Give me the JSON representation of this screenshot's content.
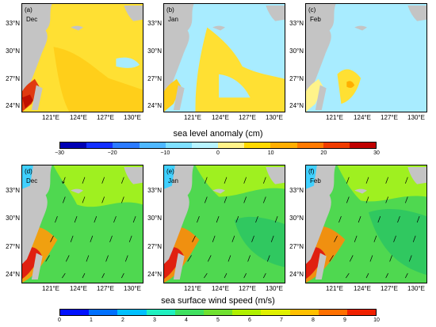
{
  "top_row": {
    "panels": [
      {
        "tag": "(a)",
        "month": "Dec"
      },
      {
        "tag": "(b)",
        "month": "Jan"
      },
      {
        "tag": "(c)",
        "month": "Feb"
      }
    ],
    "colorbar": {
      "title": "sea level anomaly (cm)",
      "ticks": [
        "−30",
        "−20",
        "−10",
        "0",
        "10",
        "20",
        "30"
      ],
      "colors": [
        "#0000b4",
        "#1430ff",
        "#2c7bff",
        "#4fb8ff",
        "#7fe0ff",
        "#b8f4ff",
        "#fff38a",
        "#ffd900",
        "#ffae00",
        "#ff7a00",
        "#f03c00",
        "#c00000"
      ]
    }
  },
  "bottom_row": {
    "panels": [
      {
        "tag": "(d)",
        "month": "Dec"
      },
      {
        "tag": "(e)",
        "month": "Jan"
      },
      {
        "tag": "(f)",
        "month": "Feb"
      }
    ],
    "colorbar": {
      "title": "sea surface wind speed (m/s)",
      "ticks": [
        "0",
        "1",
        "2",
        "3",
        "4",
        "5",
        "6",
        "7",
        "8",
        "9",
        "10"
      ],
      "colors": [
        "#0010ff",
        "#0070ff",
        "#00c0ff",
        "#20f0c0",
        "#40e060",
        "#70e030",
        "#b0f000",
        "#e0f000",
        "#ffc000",
        "#ff7000",
        "#f02000"
      ]
    }
  },
  "lat_labels": [
    "33°N",
    "30°N",
    "27°N",
    "24°N"
  ],
  "lon_labels": [
    "121°E",
    "124°E",
    "127°E",
    "130°E"
  ],
  "colors": {
    "land": "#c4c4c4",
    "sla_dec": "#ffe033",
    "sla_jan": "#a8ecff",
    "sla_feb": "#a8ecff",
    "wind_base": "#4fd850",
    "wind_high": "#f03010"
  }
}
